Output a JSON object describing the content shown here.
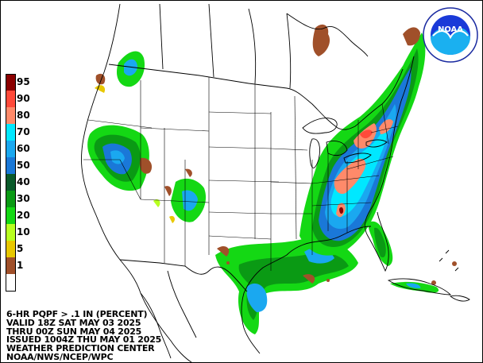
{
  "legend": {
    "items": [
      {
        "label": "95",
        "color": "#8b0000"
      },
      {
        "label": "90",
        "color": "#ff4a3a"
      },
      {
        "label": "80",
        "color": "#ff8a6a"
      },
      {
        "label": "70",
        "color": "#00e8ff"
      },
      {
        "label": "60",
        "color": "#1aa8f0"
      },
      {
        "label": "50",
        "color": "#1a78d8"
      },
      {
        "label": "40",
        "color": "#0a5a2a"
      },
      {
        "label": "30",
        "color": "#0a9a14"
      },
      {
        "label": "20",
        "color": "#14d814"
      },
      {
        "label": "10",
        "color": "#b8ff20"
      },
      {
        "label": "5",
        "color": "#e8c800"
      },
      {
        "label": "1",
        "color": "#a0502a"
      },
      {
        "label": "",
        "color": "#ffffff"
      }
    ]
  },
  "caption": {
    "line1": "6-HR PQPF > .1 IN (PERCENT)",
    "line2": "VALID 18Z SAT MAY 03 2025",
    "line3": "THRU 00Z SUN MAY 04 2025",
    "line4": "ISSUED 1004Z THU MAY 01 2025",
    "line5": "WEATHER PREDICTION CENTER",
    "line6": "NOAA/NWS/NCEP/WPC"
  },
  "logo": {
    "text": "NOAA",
    "ring_text_top": "NATIONAL OCEANIC AND ATMOSPHERIC ADMINISTRATION",
    "ring_text_bottom": "U.S. DEPARTMENT OF COMMERCE",
    "icon": "noaa-logo-icon"
  },
  "colors": {
    "land_lines": "#000000",
    "background": "#ffffff"
  }
}
